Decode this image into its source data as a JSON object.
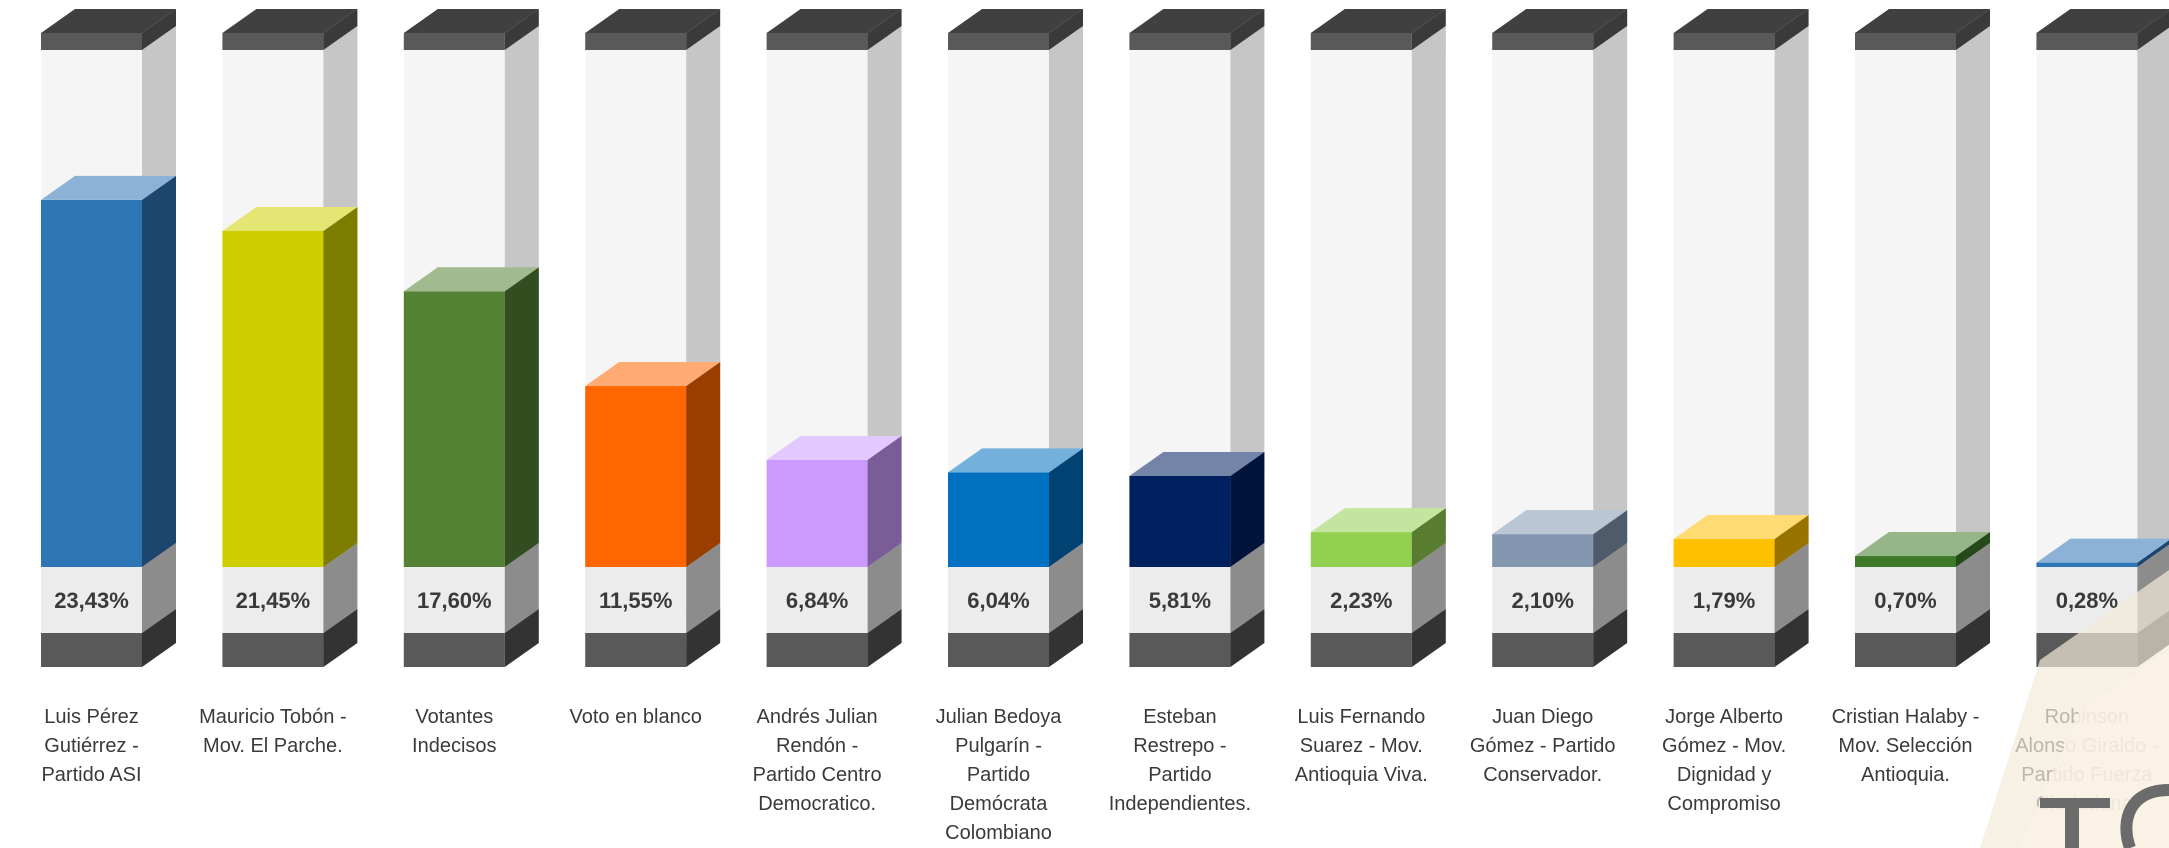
{
  "chart_data": {
    "type": "bar",
    "categories": [
      "Luis Pérez Gutiérrez - Partido ASI",
      "Mauricio Tobón - Mov. El Parche.",
      "Votantes Indecisos",
      "Voto en blanco",
      "Andrés Julian Rendón - Partido Centro Democratico.",
      "Julian Bedoya Pulgarín - Partido Demócrata Colombiano",
      "Esteban Restrepo - Partido Independientes.",
      "Luis Fernando Suarez - Mov. Antioquia Viva.",
      "Juan Diego Gómez - Partido Conservador.",
      "Jorge Alberto Gómez - Mov. Dignidad y Compromiso",
      "Cristian Halaby - Mov. Selección Antioquia.",
      "Robinson Alonso Giraldo - Partido Fuerza Ciudadana."
    ],
    "values": [
      23.43,
      21.45,
      17.6,
      11.55,
      6.84,
      6.04,
      5.81,
      2.23,
      2.1,
      1.79,
      0.7,
      0.28
    ],
    "value_labels": [
      "23,43%",
      "21,45%",
      "17,60%",
      "11,55%",
      "6,84%",
      "6,04%",
      "5,81%",
      "2,23%",
      "2,10%",
      "1,79%",
      "0,70%",
      "0,28%"
    ],
    "colors": [
      "#2e75b6",
      "#cfcf00",
      "#548235",
      "#ff6600",
      "#cc99ff",
      "#0070c0",
      "#002060",
      "#92d050",
      "#8497b0",
      "#ffc000",
      "#3e7a28",
      "#2e75b6"
    ],
    "ylim": [
      0,
      33
    ],
    "title": "",
    "xlabel": "",
    "ylabel": "",
    "legend": "none",
    "grid": false,
    "style": "3d-cylinder-columns"
  }
}
